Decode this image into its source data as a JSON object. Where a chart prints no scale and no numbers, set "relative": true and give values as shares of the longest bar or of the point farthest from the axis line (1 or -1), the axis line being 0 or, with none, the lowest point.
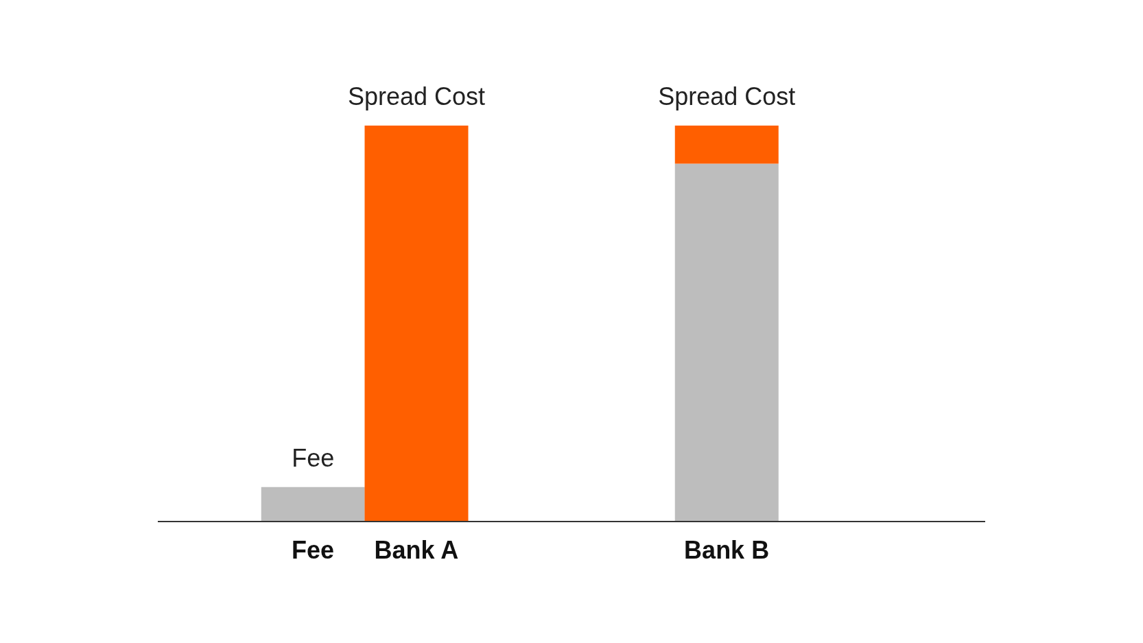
{
  "chart_data": {
    "type": "bar",
    "relative": true,
    "stacked": true,
    "legend": false,
    "categories": [
      null,
      "Fee",
      "Bank A",
      null,
      null,
      "Bank B",
      null,
      null
    ],
    "series": [
      {
        "name": "Fee",
        "color": "#bdbdbd",
        "values": [
          null,
          0.087,
          null,
          null,
          null,
          0.904,
          null,
          null
        ]
      },
      {
        "name": "Spread Cost",
        "color": "#ff5f00",
        "values": [
          null,
          null,
          1,
          null,
          null,
          0.096,
          null,
          null
        ]
      }
    ]
  }
}
